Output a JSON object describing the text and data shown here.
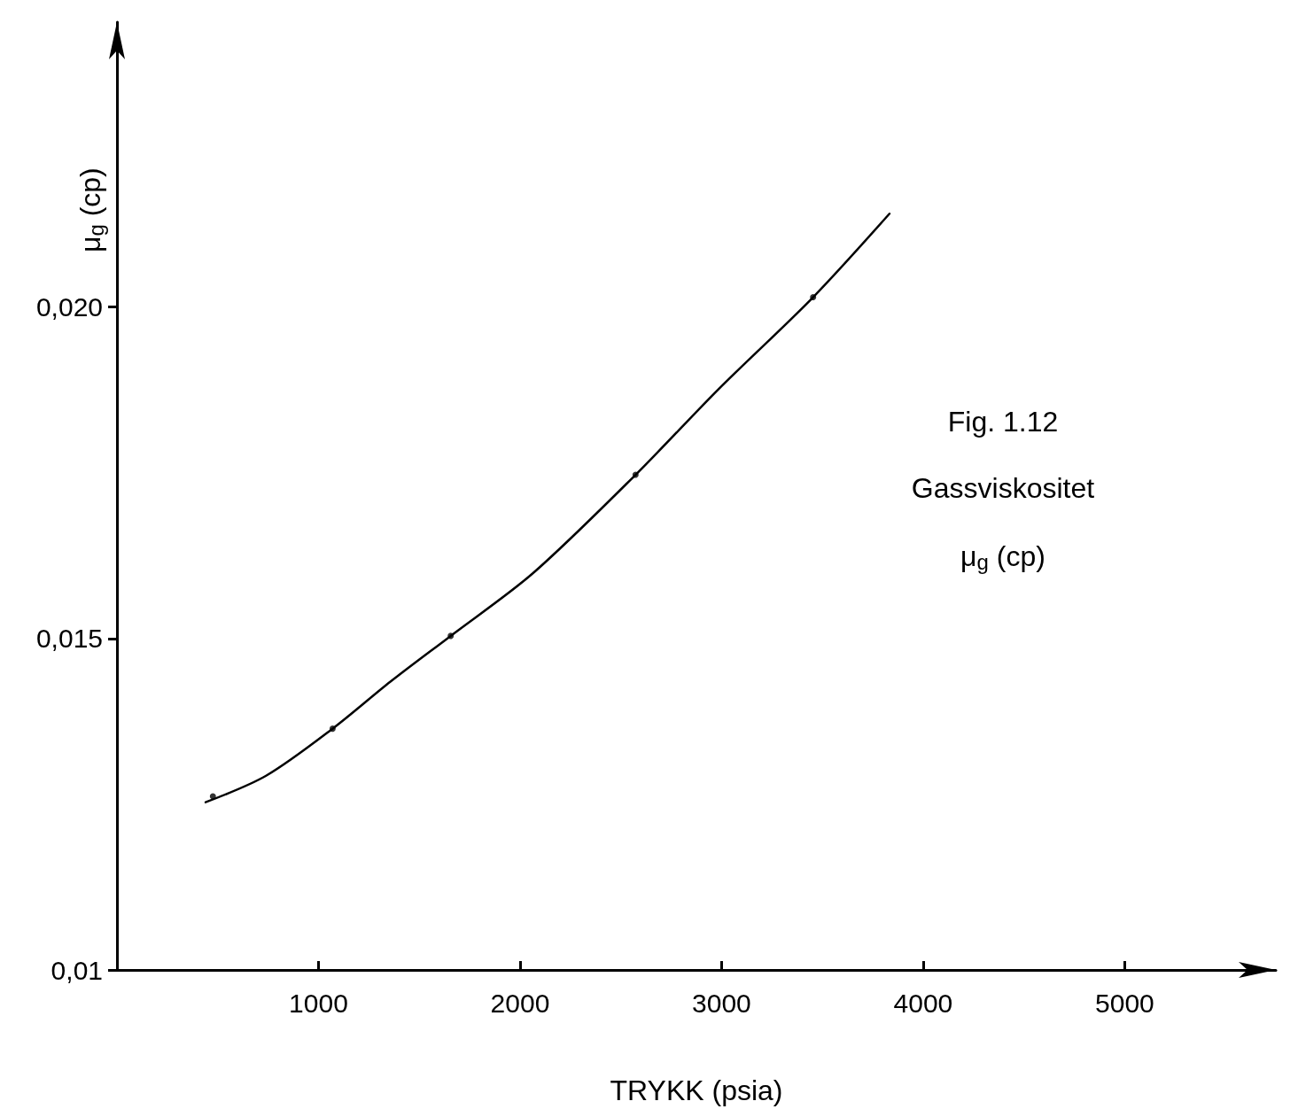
{
  "chart_data": {
    "type": "line",
    "xlabel": "TRYKK (psia)",
    "ylabel": "μ$_{g}$ (cp)",
    "annotations": [
      "Fig. 1.12",
      "Gassviskositet",
      "μ$_{g}$ (cp)"
    ],
    "series": [
      {
        "color": "#000000",
        "marker": "none",
        "x": [
          440,
          740,
          1070,
          1357,
          1656,
          2062,
          2573,
          2987,
          3454,
          3833
        ],
        "values": [
          0.01253,
          0.01293,
          0.01364,
          0.01435,
          0.01504,
          0.01598,
          0.01747,
          0.01877,
          0.02015,
          0.02141
        ]
      },
      {
        "type": "scatter",
        "color": "#000000",
        "marker": "circle",
        "x": [
          476,
          1070,
          1656,
          2573,
          3454
        ],
        "values": [
          0.01262,
          0.01364,
          0.01504,
          0.01747,
          0.02015
        ]
      }
    ],
    "xlim": [
      0,
      5750
    ],
    "xticks": [
      1000,
      2000,
      3000,
      4000,
      5000
    ],
    "ylim": [
      0.01,
      0.0243
    ],
    "yticks": [
      {
        "value": 0.01,
        "label": "0,01"
      },
      {
        "value": 0.015,
        "label": "0,015"
      },
      {
        "value": 0.02,
        "label": "0,020"
      }
    ],
    "grid": false
  }
}
